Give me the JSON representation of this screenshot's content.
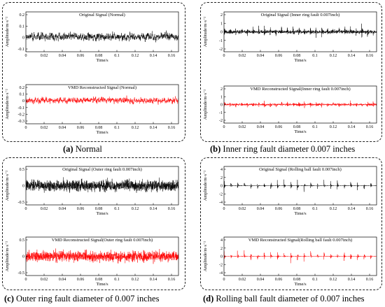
{
  "panels": [
    {
      "letter": "(a)",
      "caption": "Normal",
      "charts": [
        {
          "title": "Original Signal (Normal)",
          "color": "#000000",
          "yticks": [
            "0.2",
            "0.1",
            "0",
            "-0.1"
          ],
          "xticks": [
            "0",
            "0.02",
            "0.04",
            "0.06",
            "0.08",
            "0.1",
            "0.12",
            "0.14",
            "0.16"
          ],
          "xlabel": "Time/s",
          "ylabel": "Amplitude/m·s⁻²"
        },
        {
          "title": "VMD Reconstructed Signal (Normal)",
          "color": "#ff0000",
          "yticks": [
            "0.2",
            "0.1",
            "0",
            "-0.1",
            "-0.2",
            "-0.3"
          ],
          "xticks": [
            "0",
            "0.02",
            "0.04",
            "0.06",
            "0.08",
            "0.1",
            "0.12",
            "0.14",
            "0.16"
          ],
          "xlabel": "Time/s",
          "ylabel": "Amplitude/m·s⁻²"
        }
      ]
    },
    {
      "letter": "(b)",
      "caption": "Inner ring fault diameter 0.007 inches",
      "charts": [
        {
          "title": "Original Signal (Inner ring fault 0.007inch)",
          "color": "#000000",
          "yticks": [
            "2",
            "1",
            "0",
            "-1",
            "-2"
          ],
          "xticks": [
            "0",
            "0.02",
            "0.04",
            "0.06",
            "0.08",
            "0.1",
            "0.12",
            "0.14",
            "0.16"
          ],
          "xlabel": "Time/s",
          "ylabel": "Amplitude/m·s⁻²"
        },
        {
          "title": "VMD Reconstructed Signal(Inner ring fault 0.007inch)",
          "color": "#ff0000",
          "yticks": [
            "2",
            "1",
            "0",
            "-1",
            "-2"
          ],
          "xticks": [
            "0",
            "0.02",
            "0.04",
            "0.06",
            "0.08",
            "0.1",
            "0.12",
            "0.14",
            "0.16"
          ],
          "xlabel": "Time/s",
          "ylabel": "Amplitude/m·s⁻²"
        }
      ]
    },
    {
      "letter": "(c)",
      "caption": "Outer ring fault diameter of 0.007 inches",
      "charts": [
        {
          "title": "Original Signal (Outer ring fault 0.007inch)",
          "color": "#000000",
          "yticks": [
            "0.5",
            "0",
            "-0.5"
          ],
          "xticks": [
            "0",
            "0.02",
            "0.04",
            "0.06",
            "0.08",
            "0.1",
            "0.12",
            "0.14",
            "0.16"
          ],
          "xlabel": "Time/s",
          "ylabel": "Amplitude/m·s⁻²"
        },
        {
          "title": "VMD Reconstructed Signal(Outer ring fault 0.007inch)",
          "color": "#ff0000",
          "yticks": [
            "0.5",
            "0",
            "-0.5"
          ],
          "xticks": [
            "0",
            "0.02",
            "0.04",
            "0.06",
            "0.08",
            "0.1",
            "0.12",
            "0.14",
            "0.16"
          ],
          "xlabel": "Time/s",
          "ylabel": "Amplitude/m·s⁻²"
        }
      ]
    },
    {
      "letter": "(d)",
      "caption": "Rolling ball fault diameter of 0.007 inches",
      "charts": [
        {
          "title": "Original Signal (Rolling ball fault 0.007inch)",
          "color": "#000000",
          "yticks": [
            "4",
            "2",
            "0",
            "-2",
            "-4"
          ],
          "xticks": [
            "0",
            "0.02",
            "0.04",
            "0.06",
            "0.08",
            "0.1",
            "0.12",
            "0.14",
            "0.16"
          ],
          "xlabel": "Time/s",
          "ylabel": "Amplitude/m·s⁻²"
        },
        {
          "title": "VMD Reconstructed Signal(Rolling ball fault 0.007inch)",
          "color": "#ff0000",
          "yticks": [
            "4",
            "2",
            "0",
            "-2",
            "-4"
          ],
          "xticks": [
            "0",
            "0.02",
            "0.04",
            "0.06",
            "0.08",
            "0.1",
            "0.12",
            "0.14",
            "0.16"
          ],
          "xlabel": "Time/s",
          "ylabel": "Amplitude/m·s⁻²"
        }
      ]
    }
  ],
  "chart_data": [
    {
      "type": "line",
      "title": "Original Signal (Normal)",
      "xlabel": "Time/s",
      "ylabel": "Amplitude/m·s⁻²",
      "xlim": [
        0,
        0.165
      ],
      "ylim": [
        -0.15,
        0.25
      ],
      "grid": false,
      "series": [
        {
          "color": "#000000",
          "amplitude": 0.09,
          "pattern": "random",
          "x_range": [
            0,
            0.165
          ]
        }
      ]
    },
    {
      "type": "line",
      "title": "VMD Reconstructed Signal (Normal)",
      "xlabel": "Time/s",
      "ylabel": "Amplitude/m·s⁻²",
      "xlim": [
        0,
        0.165
      ],
      "ylim": [
        -0.3,
        0.2
      ],
      "grid": false,
      "series": [
        {
          "color": "#ff0000",
          "amplitude": 0.09,
          "pattern": "random",
          "x_range": [
            0,
            0.165
          ]
        }
      ]
    },
    {
      "type": "line",
      "title": "Original Signal (Inner ring fault 0.007inch)",
      "xlabel": "Time/s",
      "ylabel": "Amplitude/m·s⁻²",
      "xlim": [
        0,
        0.165
      ],
      "ylim": [
        -2,
        2
      ],
      "grid": false,
      "series": [
        {
          "color": "#000000",
          "amplitude": 1.1,
          "pattern": "impulsive",
          "x_range": [
            0,
            0.165
          ]
        }
      ]
    },
    {
      "type": "line",
      "title": "VMD Reconstructed Signal(Inner ring fault 0.007inch)",
      "xlabel": "Time/s",
      "ylabel": "Amplitude/m·s⁻²",
      "xlim": [
        0,
        0.165
      ],
      "ylim": [
        -2,
        2
      ],
      "grid": false,
      "series": [
        {
          "color": "#ff0000",
          "amplitude": 0.75,
          "pattern": "impulsive",
          "x_range": [
            0,
            0.165
          ]
        }
      ]
    },
    {
      "type": "line",
      "title": "Original Signal (Outer ring fault 0.007inch)",
      "xlabel": "Time/s",
      "ylabel": "Amplitude/m·s⁻²",
      "xlim": [
        0,
        0.165
      ],
      "ylim": [
        -0.6,
        0.6
      ],
      "grid": false,
      "series": [
        {
          "color": "#000000",
          "amplitude": 0.45,
          "pattern": "dense",
          "x_range": [
            0,
            0.165
          ]
        }
      ]
    },
    {
      "type": "line",
      "title": "VMD Reconstructed Signal(Outer ring fault 0.007inch)",
      "xlabel": "Time/s",
      "ylabel": "Amplitude/m·s⁻²",
      "xlim": [
        0,
        0.165
      ],
      "ylim": [
        -0.6,
        0.6
      ],
      "grid": false,
      "series": [
        {
          "color": "#ff0000",
          "amplitude": 0.42,
          "pattern": "dense",
          "x_range": [
            0,
            0.165
          ]
        }
      ]
    },
    {
      "type": "line",
      "title": "Original Signal (Rolling ball fault 0.007inch)",
      "xlabel": "Time/s",
      "ylabel": "Amplitude/m·s⁻²",
      "xlim": [
        0,
        0.165
      ],
      "ylim": [
        -4,
        4
      ],
      "grid": false,
      "series": [
        {
          "color": "#000000",
          "amplitude": 1.8,
          "pattern": "bursts",
          "x_range": [
            0,
            0.165
          ]
        }
      ]
    },
    {
      "type": "line",
      "title": "VMD Reconstructed Signal(Rolling ball fault 0.007inch)",
      "xlabel": "Time/s",
      "ylabel": "Amplitude/m·s⁻²",
      "xlim": [
        0,
        0.165
      ],
      "ylim": [
        -4,
        4
      ],
      "grid": false,
      "series": [
        {
          "color": "#ff0000",
          "amplitude": 1.7,
          "pattern": "bursts",
          "x_range": [
            0,
            0.165
          ]
        }
      ]
    }
  ]
}
